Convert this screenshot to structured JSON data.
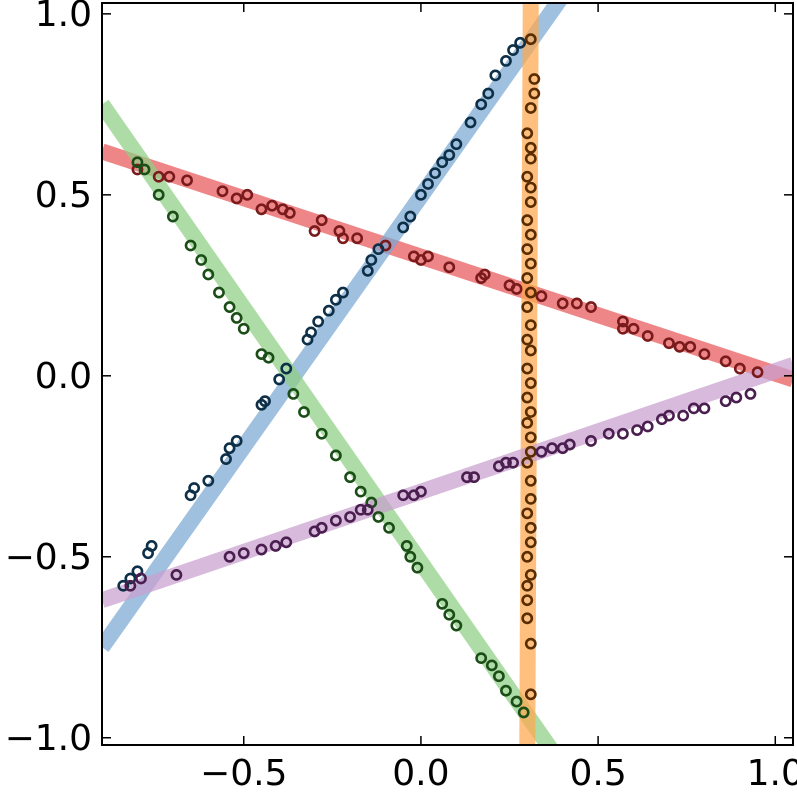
{
  "chart_data": {
    "type": "scatter",
    "title": "",
    "xlabel": "",
    "ylabel": "",
    "xlim": [
      -0.9,
      1.05
    ],
    "ylim": [
      -1.02,
      1.03
    ],
    "grid": false,
    "legend": "none",
    "x_ticks": [
      {
        "value": -0.5,
        "label": "−0.5"
      },
      {
        "value": 0.0,
        "label": "0.0"
      },
      {
        "value": 0.5,
        "label": "0.5"
      },
      {
        "value": 1.0,
        "label": "1.0"
      }
    ],
    "y_ticks": [
      {
        "value": 1.0,
        "label": "1.0"
      },
      {
        "value": 0.5,
        "label": "0.5"
      },
      {
        "value": 0.0,
        "label": "0.0"
      },
      {
        "value": -0.5,
        "label": "−0.5"
      },
      {
        "value": -1.0,
        "label": "−1.0"
      }
    ],
    "series": [
      {
        "color": "#e8585a",
        "marker_color": "#7a1a1a",
        "fit_line": [
          [
            -0.9,
            0.62
          ],
          [
            1.05,
            -0.01
          ]
        ],
        "points": [
          [
            -0.8,
            0.57
          ],
          [
            -0.74,
            0.55
          ],
          [
            -0.71,
            0.55
          ],
          [
            -0.66,
            0.54
          ],
          [
            -0.56,
            0.51
          ],
          [
            -0.52,
            0.49
          ],
          [
            -0.49,
            0.5
          ],
          [
            -0.45,
            0.46
          ],
          [
            -0.42,
            0.47
          ],
          [
            -0.39,
            0.46
          ],
          [
            -0.37,
            0.45
          ],
          [
            -0.3,
            0.4
          ],
          [
            -0.28,
            0.43
          ],
          [
            -0.23,
            0.4
          ],
          [
            -0.22,
            0.38
          ],
          [
            -0.18,
            0.38
          ],
          [
            -0.1,
            0.36
          ],
          [
            -0.02,
            0.33
          ],
          [
            0.0,
            0.32
          ],
          [
            0.02,
            0.33
          ],
          [
            0.08,
            0.3
          ],
          [
            0.17,
            0.27
          ],
          [
            0.18,
            0.28
          ],
          [
            0.25,
            0.25
          ],
          [
            0.27,
            0.24
          ],
          [
            0.34,
            0.22
          ],
          [
            0.4,
            0.2
          ],
          [
            0.44,
            0.2
          ],
          [
            0.48,
            0.19
          ],
          [
            0.57,
            0.15
          ],
          [
            0.57,
            0.13
          ],
          [
            0.6,
            0.13
          ],
          [
            0.64,
            0.11
          ],
          [
            0.7,
            0.09
          ],
          [
            0.73,
            0.08
          ],
          [
            0.76,
            0.08
          ],
          [
            0.8,
            0.06
          ],
          [
            0.86,
            0.04
          ],
          [
            0.9,
            0.02
          ],
          [
            0.95,
            0.01
          ]
        ]
      },
      {
        "color": "#7aa7d2",
        "marker_color": "#0d2f47",
        "fit_line": [
          [
            -0.9,
            -0.75
          ],
          [
            0.4,
            1.05
          ]
        ],
        "points": [
          [
            -0.84,
            -0.58
          ],
          [
            -0.82,
            -0.56
          ],
          [
            -0.8,
            -0.54
          ],
          [
            -0.77,
            -0.49
          ],
          [
            -0.76,
            -0.47
          ],
          [
            -0.65,
            -0.33
          ],
          [
            -0.64,
            -0.31
          ],
          [
            -0.6,
            -0.29
          ],
          [
            -0.55,
            -0.23
          ],
          [
            -0.54,
            -0.2
          ],
          [
            -0.52,
            -0.18
          ],
          [
            -0.45,
            -0.08
          ],
          [
            -0.44,
            -0.07
          ],
          [
            -0.4,
            -0.01
          ],
          [
            -0.38,
            0.02
          ],
          [
            -0.32,
            0.1
          ],
          [
            -0.31,
            0.12
          ],
          [
            -0.29,
            0.15
          ],
          [
            -0.26,
            0.18
          ],
          [
            -0.24,
            0.21
          ],
          [
            -0.22,
            0.23
          ],
          [
            -0.15,
            0.29
          ],
          [
            -0.14,
            0.32
          ],
          [
            -0.12,
            0.35
          ],
          [
            -0.05,
            0.41
          ],
          [
            -0.03,
            0.44
          ],
          [
            0.0,
            0.5
          ],
          [
            0.02,
            0.53
          ],
          [
            0.04,
            0.56
          ],
          [
            0.06,
            0.59
          ],
          [
            0.08,
            0.61
          ],
          [
            0.1,
            0.64
          ],
          [
            0.14,
            0.7
          ],
          [
            0.17,
            0.75
          ],
          [
            0.19,
            0.78
          ],
          [
            0.21,
            0.83
          ],
          [
            0.24,
            0.87
          ],
          [
            0.26,
            0.9
          ],
          [
            0.28,
            0.92
          ]
        ]
      },
      {
        "color": "#8fcf84",
        "marker_color": "#1b4d17",
        "fit_line": [
          [
            -0.9,
            0.75
          ],
          [
            0.38,
            -1.05
          ]
        ],
        "points": [
          [
            -0.8,
            0.59
          ],
          [
            -0.78,
            0.57
          ],
          [
            -0.74,
            0.5
          ],
          [
            -0.7,
            0.44
          ],
          [
            -0.65,
            0.36
          ],
          [
            -0.62,
            0.32
          ],
          [
            -0.6,
            0.28
          ],
          [
            -0.57,
            0.23
          ],
          [
            -0.54,
            0.19
          ],
          [
            -0.52,
            0.16
          ],
          [
            -0.5,
            0.13
          ],
          [
            -0.45,
            0.06
          ],
          [
            -0.43,
            0.05
          ],
          [
            -0.36,
            -0.05
          ],
          [
            -0.33,
            -0.1
          ],
          [
            -0.28,
            -0.16
          ],
          [
            -0.24,
            -0.22
          ],
          [
            -0.2,
            -0.28
          ],
          [
            -0.17,
            -0.32
          ],
          [
            -0.14,
            -0.35
          ],
          [
            -0.12,
            -0.39
          ],
          [
            -0.09,
            -0.42
          ],
          [
            -0.04,
            -0.47
          ],
          [
            -0.03,
            -0.5
          ],
          [
            -0.01,
            -0.53
          ],
          [
            0.06,
            -0.63
          ],
          [
            0.08,
            -0.66
          ],
          [
            0.1,
            -0.69
          ],
          [
            0.17,
            -0.78
          ],
          [
            0.2,
            -0.8
          ],
          [
            0.22,
            -0.83
          ],
          [
            0.24,
            -0.87
          ],
          [
            0.27,
            -0.9
          ],
          [
            0.29,
            -0.93
          ]
        ]
      },
      {
        "color": "#ffa84d",
        "marker_color": "#5a2d00",
        "fit_line": [
          [
            0.3,
            -1.05
          ],
          [
            0.31,
            1.05
          ]
        ],
        "points": [
          [
            0.31,
            0.93
          ],
          [
            0.32,
            0.82
          ],
          [
            0.32,
            0.78
          ],
          [
            0.31,
            0.74
          ],
          [
            0.3,
            0.67
          ],
          [
            0.31,
            0.63
          ],
          [
            0.31,
            0.6
          ],
          [
            0.3,
            0.55
          ],
          [
            0.31,
            0.52
          ],
          [
            0.31,
            0.48
          ],
          [
            0.3,
            0.43
          ],
          [
            0.31,
            0.39
          ],
          [
            0.3,
            0.35
          ],
          [
            0.31,
            0.31
          ],
          [
            0.3,
            0.27
          ],
          [
            0.31,
            0.23
          ],
          [
            0.3,
            0.19
          ],
          [
            0.31,
            0.14
          ],
          [
            0.3,
            0.1
          ],
          [
            0.31,
            0.07
          ],
          [
            0.3,
            0.02
          ],
          [
            0.31,
            -0.02
          ],
          [
            0.3,
            -0.06
          ],
          [
            0.31,
            -0.1
          ],
          [
            0.3,
            -0.13
          ],
          [
            0.31,
            -0.17
          ],
          [
            0.31,
            -0.21
          ],
          [
            0.3,
            -0.24
          ],
          [
            0.31,
            -0.29
          ],
          [
            0.31,
            -0.34
          ],
          [
            0.3,
            -0.38
          ],
          [
            0.31,
            -0.42
          ],
          [
            0.31,
            -0.46
          ],
          [
            0.3,
            -0.5
          ],
          [
            0.31,
            -0.55
          ],
          [
            0.3,
            -0.58
          ],
          [
            0.3,
            -0.62
          ],
          [
            0.3,
            -0.67
          ],
          [
            0.31,
            -0.74
          ],
          [
            0.31,
            -0.88
          ]
        ]
      },
      {
        "color": "#c9a0cf",
        "marker_color": "#4a1f50",
        "fit_line": [
          [
            -0.9,
            -0.62
          ],
          [
            1.05,
            0.03
          ]
        ],
        "points": [
          [
            -0.82,
            -0.58
          ],
          [
            -0.79,
            -0.56
          ],
          [
            -0.69,
            -0.55
          ],
          [
            -0.54,
            -0.5
          ],
          [
            -0.5,
            -0.49
          ],
          [
            -0.45,
            -0.48
          ],
          [
            -0.41,
            -0.47
          ],
          [
            -0.38,
            -0.46
          ],
          [
            -0.3,
            -0.43
          ],
          [
            -0.28,
            -0.42
          ],
          [
            -0.24,
            -0.4
          ],
          [
            -0.2,
            -0.39
          ],
          [
            -0.17,
            -0.37
          ],
          [
            -0.15,
            -0.37
          ],
          [
            -0.05,
            -0.33
          ],
          [
            -0.02,
            -0.33
          ],
          [
            0.0,
            -0.32
          ],
          [
            0.13,
            -0.28
          ],
          [
            0.15,
            -0.28
          ],
          [
            0.22,
            -0.25
          ],
          [
            0.24,
            -0.24
          ],
          [
            0.26,
            -0.24
          ],
          [
            0.34,
            -0.21
          ],
          [
            0.37,
            -0.2
          ],
          [
            0.4,
            -0.2
          ],
          [
            0.42,
            -0.19
          ],
          [
            0.48,
            -0.18
          ],
          [
            0.53,
            -0.16
          ],
          [
            0.57,
            -0.16
          ],
          [
            0.61,
            -0.15
          ],
          [
            0.64,
            -0.14
          ],
          [
            0.68,
            -0.12
          ],
          [
            0.7,
            -0.11
          ],
          [
            0.74,
            -0.11
          ],
          [
            0.77,
            -0.09
          ],
          [
            0.8,
            -0.09
          ],
          [
            0.86,
            -0.07
          ],
          [
            0.89,
            -0.06
          ],
          [
            0.93,
            -0.05
          ]
        ]
      }
    ]
  }
}
